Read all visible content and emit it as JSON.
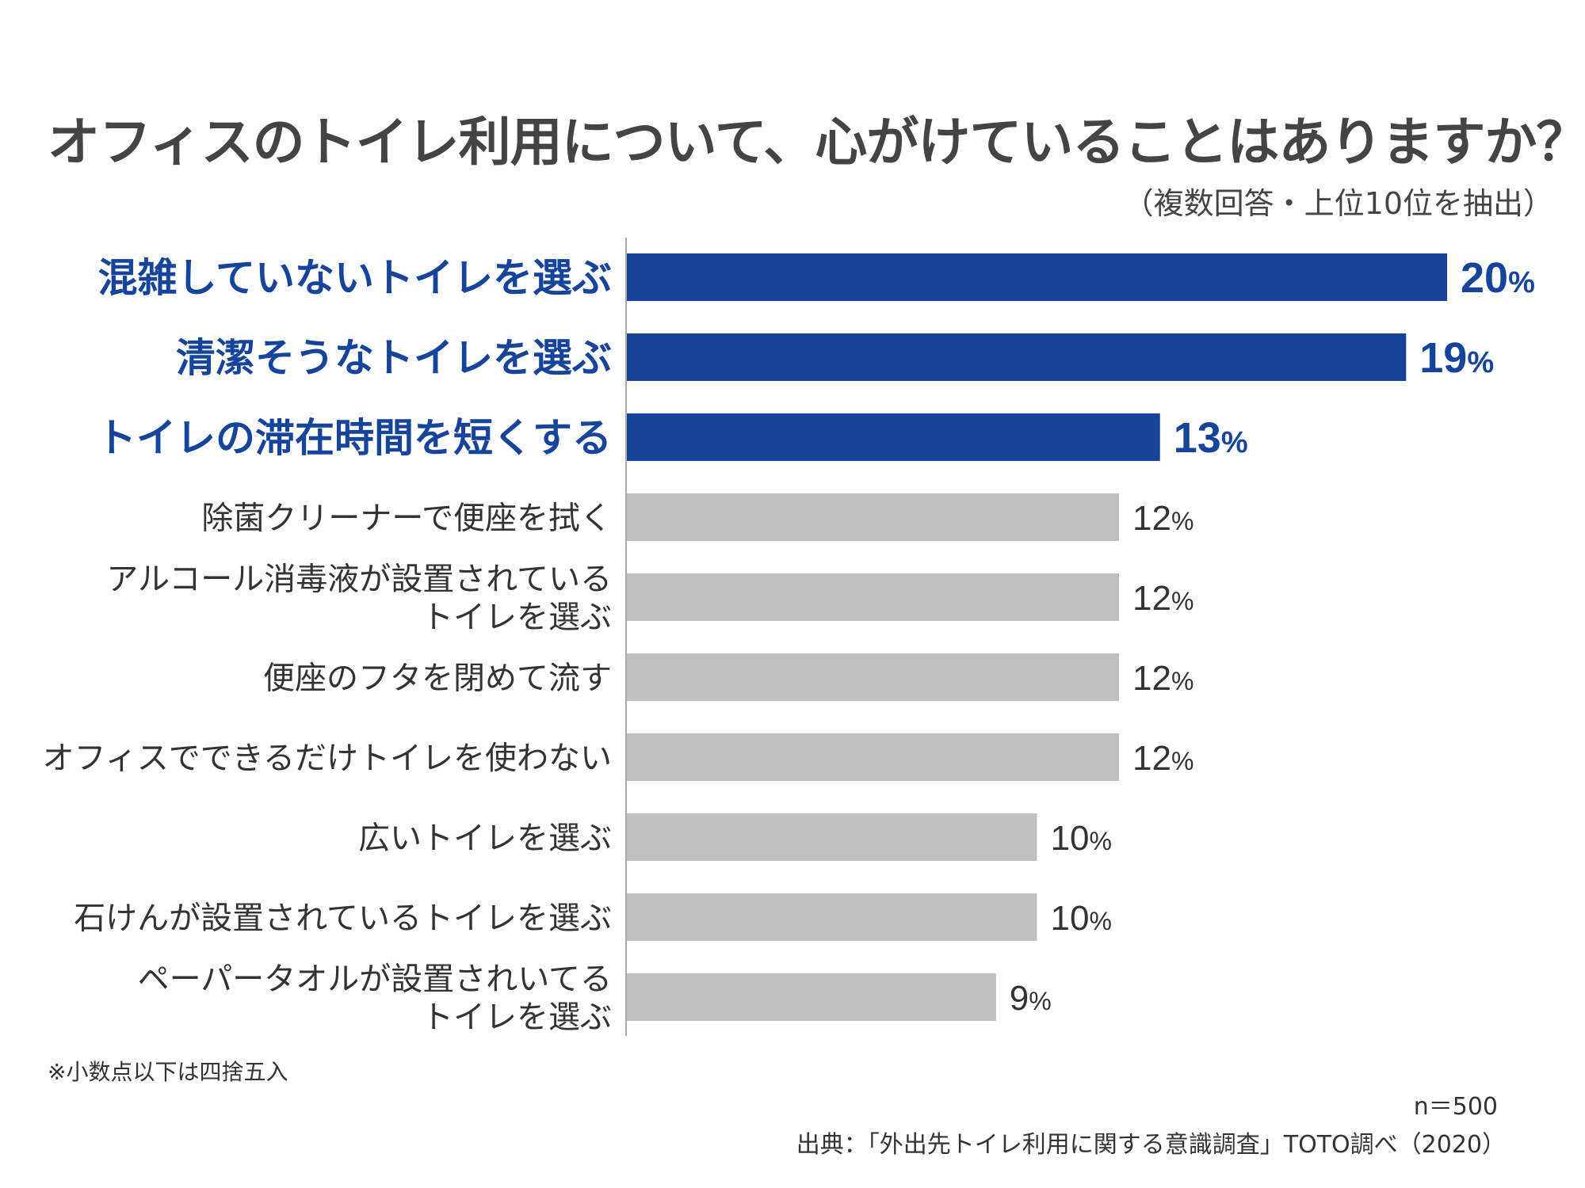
{
  "header": {
    "title": "オフィスのトイレ利用について、心がけていることはありますか？",
    "subtitle": "（複数回答・上位10位を抽出）"
  },
  "chart_data": {
    "type": "bar",
    "orientation": "horizontal",
    "categories": [
      "混雑していないトイレを選ぶ",
      "清潔そうなトイレを選ぶ",
      "トイレの滞在時間を短くする",
      "除菌クリーナーで便座を拭く",
      "アルコール消毒液が設置されている\nトイレを選ぶ",
      "便座のフタを閉めて流す",
      "オフィスでできるだけトイレを使わない",
      "広いトイレを選ぶ",
      "石けんが設置されているトイレを選ぶ",
      "ペーパータオルが設置されいてる\nトイレを選ぶ"
    ],
    "values": [
      20,
      19,
      13,
      12,
      12,
      12,
      12,
      10,
      10,
      9
    ],
    "value_suffix": "%",
    "highlight_count": 3,
    "xlim": [
      0,
      20
    ]
  },
  "colors": {
    "highlight": "#17449b",
    "normal": "#c0c0c0",
    "axis": "#aaaaaa",
    "text": "#333333"
  },
  "footer": {
    "note": "※小数点以下は四捨五入",
    "n": "n＝500",
    "source": "出典：「外出先トイレ利用に関する意識調査」TOTO調べ（2020）"
  }
}
